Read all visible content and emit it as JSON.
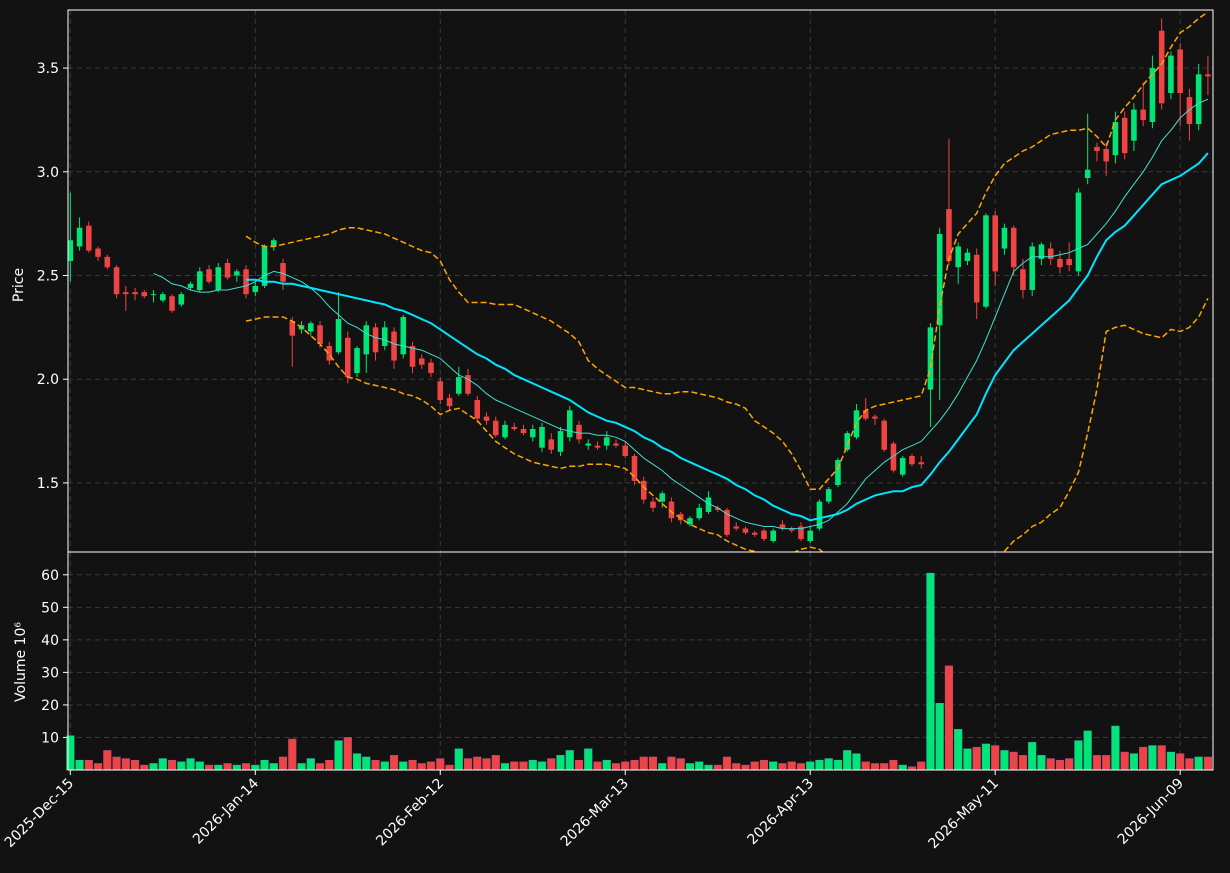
{
  "chart_data": {
    "type": "candlestick",
    "ylabel": "Price",
    "ylim": [
      1.167,
      3.78
    ],
    "yticks": [
      1.5,
      {
        "value": 2,
        "label": "2.0"
      },
      2.5,
      {
        "value": 3,
        "label": "3.0"
      },
      3.5
    ],
    "grid": true,
    "up_color": "#00e676",
    "down_color": "#ef4444",
    "x": [
      "2025-Dec-15",
      null,
      null,
      null,
      null,
      null,
      null,
      null,
      null,
      null,
      null,
      null,
      null,
      null,
      null,
      null,
      null,
      null,
      null,
      null,
      "2026-Jan-14",
      null,
      null,
      null,
      null,
      null,
      null,
      null,
      null,
      null,
      null,
      null,
      null,
      null,
      null,
      null,
      null,
      null,
      null,
      null,
      "2026-Feb-12",
      null,
      null,
      null,
      null,
      null,
      null,
      null,
      null,
      null,
      null,
      null,
      null,
      null,
      null,
      null,
      null,
      null,
      null,
      null,
      "2026-Mar-13",
      null,
      null,
      null,
      null,
      null,
      null,
      null,
      null,
      null,
      null,
      null,
      null,
      null,
      null,
      null,
      null,
      null,
      null,
      null,
      "2026-Apr-13",
      null,
      null,
      null,
      null,
      null,
      null,
      null,
      null,
      null,
      null,
      null,
      null,
      null,
      null,
      null,
      null,
      null,
      null,
      null,
      "2026-May-11",
      null,
      null,
      null,
      null,
      null,
      null,
      null,
      null,
      null,
      null,
      null,
      null,
      null,
      null,
      null,
      null,
      null,
      null,
      null,
      "2026-Jun-09",
      null,
      null,
      null
    ],
    "open": [
      2.57,
      2.64,
      2.74,
      2.63,
      2.59,
      2.54,
      2.42,
      2.42,
      2.42,
      2.41,
      2.38,
      2.4,
      2.36,
      2.44,
      2.43,
      2.53,
      2.43,
      2.56,
      2.5,
      2.53,
      2.42,
      2.45,
      2.64,
      2.56,
      2.28,
      2.24,
      2.23,
      2.26,
      2.16,
      2.13,
      2.2,
      2.03,
      2.12,
      2.25,
      2.16,
      2.23,
      2.12,
      2.16,
      2.1,
      2.08,
      1.99,
      1.91,
      1.93,
      2.02,
      1.9,
      1.82,
      1.8,
      1.72,
      1.77,
      1.76,
      1.72,
      1.67,
      1.71,
      1.65,
      1.72,
      1.78,
      1.68,
      1.68,
      1.68,
      1.69,
      1.68,
      1.63,
      1.51,
      1.41,
      1.41,
      1.41,
      1.35,
      1.3,
      1.33,
      1.36,
      1.38,
      1.37,
      1.29,
      1.28,
      1.26,
      1.27,
      1.22,
      1.3,
      1.28,
      1.29,
      1.22,
      1.28,
      1.41,
      1.49,
      1.66,
      1.72,
      1.85,
      1.82,
      1.8,
      1.69,
      1.54,
      1.63,
      1.6,
      1.95,
      2.26,
      2.82,
      2.54,
      2.57,
      2.6,
      2.35,
      2.79,
      2.63,
      2.73,
      2.53,
      2.43,
      2.58,
      2.63,
      2.58,
      2.58,
      2.52,
      2.97,
      3.12,
      3.11,
      3.08,
      3.26,
      3.15,
      3.3,
      3.24,
      3.68,
      3.38,
      3.59,
      3.36,
      3.23,
      3.47
    ],
    "high": [
      2.9,
      2.78,
      2.76,
      2.64,
      2.6,
      2.55,
      2.45,
      2.44,
      2.43,
      2.43,
      2.42,
      2.41,
      2.42,
      2.47,
      2.54,
      2.55,
      2.56,
      2.58,
      2.53,
      2.55,
      2.47,
      2.65,
      2.68,
      2.58,
      2.3,
      2.28,
      2.28,
      2.28,
      2.18,
      2.42,
      2.23,
      2.16,
      2.28,
      2.27,
      2.28,
      2.25,
      2.31,
      2.18,
      2.12,
      2.1,
      2.01,
      1.93,
      2.06,
      2.05,
      1.92,
      1.84,
      1.82,
      1.8,
      1.79,
      1.78,
      1.78,
      1.79,
      1.74,
      1.77,
      1.87,
      1.8,
      1.71,
      1.7,
      1.75,
      1.71,
      1.7,
      1.64,
      1.53,
      1.43,
      1.46,
      1.43,
      1.36,
      1.34,
      1.4,
      1.46,
      1.39,
      1.38,
      1.31,
      1.29,
      1.27,
      1.28,
      1.28,
      1.32,
      1.29,
      1.31,
      1.29,
      1.42,
      1.48,
      1.62,
      1.75,
      1.88,
      1.91,
      1.83,
      1.81,
      1.7,
      1.63,
      1.64,
      1.63,
      2.27,
      2.73,
      3.16,
      2.66,
      2.63,
      2.63,
      2.8,
      2.81,
      2.75,
      2.74,
      2.58,
      2.66,
      2.66,
      2.66,
      2.62,
      2.66,
      2.92,
      3.28,
      3.14,
      3.14,
      3.29,
      3.29,
      3.33,
      3.43,
      3.56,
      3.74,
      3.58,
      3.62,
      3.4,
      3.52,
      3.56
    ],
    "low": [
      2.47,
      2.62,
      2.61,
      2.57,
      2.53,
      2.39,
      2.33,
      2.38,
      2.39,
      2.37,
      2.37,
      2.32,
      2.35,
      2.43,
      2.42,
      2.46,
      2.42,
      2.48,
      2.47,
      2.39,
      2.4,
      2.44,
      2.62,
      2.43,
      2.06,
      2.22,
      2.21,
      2.15,
      2.07,
      2.12,
      1.98,
      2.01,
      2.03,
      2.09,
      2.14,
      2.05,
      2.1,
      2.03,
      2.05,
      2.01,
      1.88,
      1.85,
      1.92,
      1.92,
      1.79,
      1.78,
      1.72,
      1.71,
      1.75,
      1.73,
      1.7,
      1.65,
      1.64,
      1.63,
      1.7,
      1.69,
      1.66,
      1.66,
      1.66,
      1.67,
      1.62,
      1.49,
      1.4,
      1.36,
      1.38,
      1.31,
      1.3,
      1.29,
      1.32,
      1.35,
      1.36,
      1.24,
      1.27,
      1.25,
      1.24,
      1.22,
      1.21,
      1.27,
      1.26,
      1.22,
      1.21,
      1.27,
      1.4,
      1.48,
      1.65,
      1.71,
      1.8,
      1.78,
      1.65,
      1.55,
      1.53,
      1.58,
      1.57,
      1.77,
      1.9,
      2.55,
      2.46,
      2.55,
      2.29,
      2.34,
      2.45,
      2.6,
      2.5,
      2.39,
      2.4,
      2.55,
      2.55,
      2.51,
      2.52,
      2.5,
      2.94,
      3.05,
      2.98,
      3.04,
      3.06,
      3.1,
      3.22,
      3.21,
      3.3,
      3.35,
      3.22,
      3.15,
      3.2,
      3.37
    ],
    "close": [
      2.67,
      2.73,
      2.62,
      2.59,
      2.54,
      2.41,
      2.41,
      2.41,
      2.4,
      2.41,
      2.41,
      2.33,
      2.41,
      2.46,
      2.52,
      2.47,
      2.54,
      2.49,
      2.52,
      2.41,
      2.45,
      2.64,
      2.67,
      2.47,
      2.21,
      2.26,
      2.27,
      2.17,
      2.09,
      2.29,
      2.01,
      2.15,
      2.26,
      2.13,
      2.25,
      2.09,
      2.3,
      2.06,
      2.07,
      2.03,
      1.9,
      1.87,
      2.01,
      1.93,
      1.81,
      1.8,
      1.73,
      1.78,
      1.76,
      1.74,
      1.76,
      1.77,
      1.66,
      1.75,
      1.85,
      1.71,
      1.69,
      1.67,
      1.72,
      1.68,
      1.63,
      1.51,
      1.42,
      1.38,
      1.45,
      1.33,
      1.32,
      1.33,
      1.38,
      1.43,
      1.37,
      1.25,
      1.28,
      1.26,
      1.25,
      1.23,
      1.27,
      1.28,
      1.27,
      1.23,
      1.27,
      1.41,
      1.47,
      1.61,
      1.74,
      1.85,
      1.81,
      1.81,
      1.66,
      1.56,
      1.62,
      1.59,
      1.59,
      2.25,
      2.7,
      2.57,
      2.64,
      2.61,
      2.37,
      2.79,
      2.52,
      2.73,
      2.54,
      2.43,
      2.64,
      2.65,
      2.58,
      2.54,
      2.55,
      2.9,
      3.01,
      3.1,
      3.05,
      3.24,
      3.09,
      3.3,
      3.25,
      3.5,
      3.33,
      3.56,
      3.38,
      3.23,
      3.47,
      3.46
    ],
    "overlays": [
      {
        "color": "#40e0d0",
        "style": "solid",
        "width": 1,
        "values": [
          null,
          null,
          null,
          null,
          null,
          null,
          null,
          null,
          null,
          2.51,
          2.49,
          2.46,
          2.45,
          2.43,
          2.42,
          2.42,
          2.43,
          2.43,
          2.44,
          2.45,
          2.47,
          2.5,
          2.52,
          2.51,
          2.49,
          2.47,
          2.44,
          2.4,
          2.35,
          2.31,
          2.27,
          2.25,
          2.22,
          2.2,
          2.19,
          2.17,
          2.16,
          2.15,
          2.14,
          2.12,
          2.1,
          2.06,
          2.02,
          2.0,
          1.97,
          1.93,
          1.9,
          1.88,
          1.86,
          1.84,
          1.82,
          1.8,
          1.78,
          1.76,
          1.75,
          1.74,
          1.74,
          1.73,
          1.73,
          1.72,
          1.7,
          1.66,
          1.62,
          1.59,
          1.56,
          1.52,
          1.49,
          1.46,
          1.43,
          1.4,
          1.38,
          1.35,
          1.33,
          1.31,
          1.3,
          1.29,
          1.29,
          1.28,
          1.28,
          1.28,
          1.29,
          1.3,
          1.32,
          1.36,
          1.4,
          1.46,
          1.52,
          1.56,
          1.6,
          1.63,
          1.66,
          1.68,
          1.7,
          1.75,
          1.8,
          1.86,
          1.93,
          2.01,
          2.09,
          2.19,
          2.3,
          2.41,
          2.52,
          2.56,
          2.59,
          2.59,
          2.59,
          2.6,
          2.61,
          2.63,
          2.65,
          2.7,
          2.75,
          2.81,
          2.88,
          2.94,
          3.0,
          3.07,
          3.15,
          3.2,
          3.26,
          3.3,
          3.33,
          3.35
        ]
      },
      {
        "color": "#00e5ff",
        "style": "solid",
        "width": 2,
        "values": [
          null,
          null,
          null,
          null,
          null,
          null,
          null,
          null,
          null,
          null,
          null,
          null,
          null,
          null,
          null,
          null,
          null,
          null,
          null,
          2.48,
          2.48,
          2.47,
          2.47,
          2.46,
          2.46,
          2.45,
          2.44,
          2.43,
          2.42,
          2.41,
          2.4,
          2.39,
          2.38,
          2.37,
          2.36,
          2.34,
          2.33,
          2.31,
          2.29,
          2.27,
          2.24,
          2.21,
          2.18,
          2.15,
          2.12,
          2.1,
          2.07,
          2.05,
          2.02,
          2.0,
          1.98,
          1.96,
          1.94,
          1.92,
          1.9,
          1.87,
          1.84,
          1.82,
          1.8,
          1.79,
          1.77,
          1.75,
          1.72,
          1.7,
          1.67,
          1.65,
          1.62,
          1.6,
          1.58,
          1.56,
          1.54,
          1.52,
          1.49,
          1.47,
          1.44,
          1.42,
          1.39,
          1.37,
          1.35,
          1.34,
          1.32,
          1.33,
          1.34,
          1.35,
          1.37,
          1.4,
          1.42,
          1.44,
          1.45,
          1.46,
          1.46,
          1.48,
          1.49,
          1.54,
          1.6,
          1.65,
          1.71,
          1.77,
          1.83,
          1.93,
          2.02,
          2.08,
          2.14,
          2.18,
          2.22,
          2.26,
          2.3,
          2.34,
          2.38,
          2.44,
          2.5,
          2.59,
          2.67,
          2.71,
          2.74,
          2.79,
          2.84,
          2.89,
          2.94,
          2.96,
          2.98,
          3.01,
          3.04,
          3.09
        ]
      },
      {
        "color": "#ffa500",
        "style": "dashed",
        "width": 1.5,
        "values": [
          null,
          null,
          null,
          null,
          null,
          null,
          null,
          null,
          null,
          null,
          null,
          null,
          null,
          null,
          null,
          null,
          null,
          null,
          null,
          2.69,
          2.66,
          2.64,
          2.64,
          2.65,
          2.66,
          2.67,
          2.68,
          2.69,
          2.7,
          2.72,
          2.73,
          2.73,
          2.72,
          2.71,
          2.7,
          2.68,
          2.66,
          2.64,
          2.62,
          2.61,
          2.57,
          2.48,
          2.42,
          2.37,
          2.37,
          2.37,
          2.36,
          2.36,
          2.36,
          2.34,
          2.32,
          2.3,
          2.28,
          2.25,
          2.22,
          2.18,
          2.09,
          2.05,
          2.02,
          1.99,
          1.96,
          1.96,
          1.95,
          1.94,
          1.93,
          1.93,
          1.94,
          1.94,
          1.93,
          1.92,
          1.91,
          1.89,
          1.88,
          1.86,
          1.8,
          1.77,
          1.74,
          1.7,
          1.64,
          1.56,
          1.47,
          1.47,
          1.52,
          1.57,
          1.68,
          1.79,
          1.85,
          1.87,
          1.88,
          1.89,
          1.9,
          1.91,
          1.92,
          2.05,
          2.35,
          2.58,
          2.7,
          2.75,
          2.8,
          2.9,
          2.98,
          3.04,
          3.07,
          3.1,
          3.12,
          3.15,
          3.18,
          3.19,
          3.2,
          3.2,
          3.21,
          3.17,
          3.12,
          3.25,
          3.31,
          3.36,
          3.42,
          3.47,
          3.52,
          3.6,
          3.67,
          3.7,
          3.74,
          3.77
        ]
      },
      {
        "color": "#ffa500",
        "style": "dashed",
        "width": 1.5,
        "values": [
          null,
          null,
          null,
          null,
          null,
          null,
          null,
          null,
          null,
          null,
          null,
          null,
          null,
          null,
          null,
          null,
          null,
          null,
          null,
          2.28,
          2.29,
          2.3,
          2.3,
          2.3,
          2.28,
          2.25,
          2.21,
          2.17,
          2.12,
          2.06,
          2.01,
          2.0,
          1.98,
          1.97,
          1.96,
          1.95,
          1.93,
          1.92,
          1.9,
          1.87,
          1.83,
          1.85,
          1.86,
          1.83,
          1.8,
          1.75,
          1.7,
          1.67,
          1.64,
          1.62,
          1.6,
          1.59,
          1.58,
          1.57,
          1.58,
          1.58,
          1.59,
          1.59,
          1.59,
          1.58,
          1.57,
          1.53,
          1.48,
          1.44,
          1.4,
          1.36,
          1.33,
          1.3,
          1.28,
          1.26,
          1.25,
          1.22,
          1.2,
          1.18,
          1.17,
          1.16,
          1.15,
          1.15,
          1.16,
          1.18,
          1.19,
          1.18,
          1.14,
          null,
          null,
          null,
          null,
          null,
          null,
          null,
          null,
          null,
          null,
          null,
          null,
          null,
          null,
          null,
          null,
          null,
          null,
          1.17,
          1.22,
          1.25,
          1.29,
          1.31,
          1.35,
          1.38,
          1.46,
          1.55,
          1.74,
          1.95,
          2.23,
          2.25,
          2.26,
          2.24,
          2.22,
          2.21,
          2.2,
          2.24,
          2.23,
          2.25,
          2.3,
          2.39
        ]
      }
    ],
    "volume": {
      "ylabel": "Volume  10⁶",
      "ylim": [
        0,
        67
      ],
      "yticks": [
        10,
        20,
        30,
        40,
        50,
        60
      ],
      "values": [
        10.5,
        3,
        3,
        2,
        6,
        4,
        3.5,
        3,
        1.5,
        2,
        3.5,
        3,
        2.5,
        3.5,
        2.5,
        1.5,
        1.5,
        2,
        1.5,
        2,
        1.5,
        3,
        2,
        4,
        9.5,
        2,
        3.5,
        2,
        3,
        9,
        10,
        5,
        4,
        3,
        2.5,
        4.5,
        2.5,
        3,
        2,
        2.5,
        3.5,
        1.5,
        6.5,
        3.5,
        4,
        3.5,
        4.5,
        2,
        2.5,
        2.5,
        3,
        2.5,
        3.5,
        4.5,
        6,
        3,
        6.5,
        2.5,
        3,
        2,
        2.5,
        3,
        4,
        4,
        2,
        4,
        3.5,
        2,
        2.5,
        1.5,
        1.5,
        4,
        2,
        1.5,
        2.5,
        3,
        2.5,
        2,
        2.5,
        2,
        2.5,
        3,
        3.5,
        3,
        6,
        5,
        2.5,
        2,
        2,
        3,
        1.5,
        1,
        2.5,
        60.5,
        20.5,
        32,
        12.5,
        6.5,
        7,
        8,
        7.5,
        6,
        5.5,
        4.5,
        8.5,
        4.5,
        3.5,
        3,
        3.5,
        9,
        12,
        4.5,
        4.5,
        13.5,
        5.5,
        5,
        7,
        7.5,
        7.5,
        5.5,
        5,
        3.5,
        4,
        4
      ]
    }
  }
}
